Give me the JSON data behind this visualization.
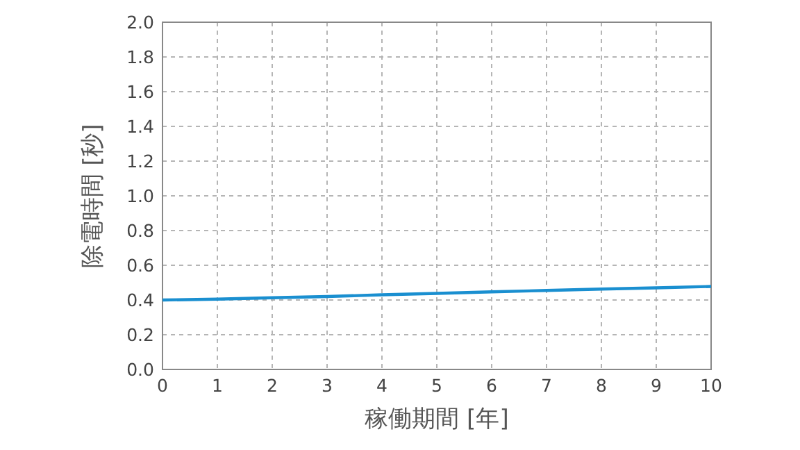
{
  "chart_data": {
    "type": "line",
    "xlabel": "稼働期間 [年]",
    "ylabel": "除電時間 [秒]",
    "x": [
      0,
      1,
      2,
      3,
      4,
      5,
      6,
      7,
      8,
      9,
      10
    ],
    "series": [
      {
        "color": "#1a8fd0",
        "values": [
          0.4,
          0.405,
          0.413,
          0.42,
          0.43,
          0.438,
          0.447,
          0.455,
          0.463,
          0.47,
          0.478
        ]
      }
    ],
    "xlim": [
      0,
      10
    ],
    "xticks": [
      0,
      1,
      2,
      3,
      4,
      5,
      6,
      7,
      8,
      9,
      10
    ],
    "ylim": [
      0,
      2
    ],
    "yticks": [
      {
        "value": 0,
        "label": "0.0"
      },
      {
        "value": 0.2,
        "label": "0.2"
      },
      {
        "value": 0.4,
        "label": "0.4"
      },
      {
        "value": 0.6,
        "label": "0.6"
      },
      {
        "value": 0.8,
        "label": "0.8"
      },
      {
        "value": 1,
        "label": "1.0"
      },
      {
        "value": 1.2,
        "label": "1.2"
      },
      {
        "value": 1.4,
        "label": "1.4"
      },
      {
        "value": 1.6,
        "label": "1.6"
      },
      {
        "value": 1.8,
        "label": "1.8"
      },
      {
        "value": 2,
        "label": "2.0"
      }
    ],
    "grid": true,
    "line_style": "solid",
    "marker": "none"
  }
}
